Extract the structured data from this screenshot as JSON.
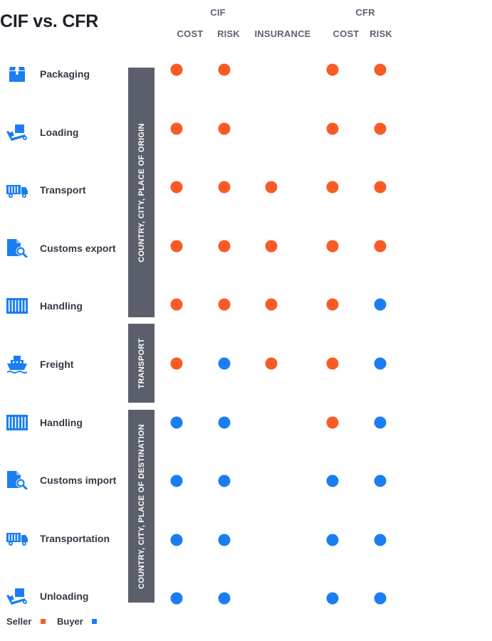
{
  "title": "CIF vs. CFR",
  "colors": {
    "seller": "#fa5a24",
    "buyer": "#1a7ef2",
    "band": "#5a5f6b",
    "icon": "#1a7ef2"
  },
  "groups": [
    {
      "key": "cif",
      "label": "CIF"
    },
    {
      "key": "cfr",
      "label": "CFR"
    }
  ],
  "columns": [
    {
      "key": "cif_cost",
      "group": "cif",
      "label": "COST"
    },
    {
      "key": "cif_risk",
      "group": "cif",
      "label": "RISK"
    },
    {
      "key": "cif_insurance",
      "group": "cif",
      "label": "INSURANCE"
    },
    {
      "key": "cfr_cost",
      "group": "cfr",
      "label": "COST"
    },
    {
      "key": "cfr_risk",
      "group": "cfr",
      "label": "RISK"
    }
  ],
  "rows": [
    {
      "label": "Packaging",
      "icon": "package-icon",
      "responsibility": [
        "seller",
        "seller",
        null,
        "seller",
        "seller"
      ]
    },
    {
      "label": "Loading",
      "icon": "hand-truck-icon",
      "responsibility": [
        "seller",
        "seller",
        null,
        "seller",
        "seller"
      ]
    },
    {
      "label": "Transport",
      "icon": "truck-icon",
      "responsibility": [
        "seller",
        "seller",
        "seller",
        "seller",
        "seller"
      ]
    },
    {
      "label": "Customs export",
      "icon": "document-search-icon",
      "responsibility": [
        "seller",
        "seller",
        "seller",
        "seller",
        "seller"
      ]
    },
    {
      "label": "Handling",
      "icon": "container-icon",
      "responsibility": [
        "seller",
        "seller",
        "seller",
        "seller",
        "buyer"
      ]
    },
    {
      "label": "Freight",
      "icon": "ship-icon",
      "responsibility": [
        "seller",
        "buyer",
        "seller",
        "seller",
        "buyer"
      ]
    },
    {
      "label": "Handling",
      "icon": "container-icon",
      "responsibility": [
        "buyer",
        "buyer",
        null,
        "seller",
        "buyer"
      ]
    },
    {
      "label": "Customs import",
      "icon": "document-search-icon",
      "responsibility": [
        "buyer",
        "buyer",
        null,
        "buyer",
        "buyer"
      ]
    },
    {
      "label": "Transportation",
      "icon": "truck-icon",
      "responsibility": [
        "buyer",
        "buyer",
        null,
        "buyer",
        "buyer"
      ]
    },
    {
      "label": "Unloading",
      "icon": "hand-truck-icon",
      "responsibility": [
        "buyer",
        "buyer",
        null,
        "buyer",
        "buyer"
      ]
    }
  ],
  "bands": [
    {
      "label": "COUNTRY, CITY, PLACE OF ORIGIN"
    },
    {
      "label": "TRANSPORT"
    },
    {
      "label": "COUNTRY, CITY, PLACE OF DESTINATION"
    }
  ],
  "legend": {
    "seller": "Seller",
    "buyer": "Buyer"
  }
}
